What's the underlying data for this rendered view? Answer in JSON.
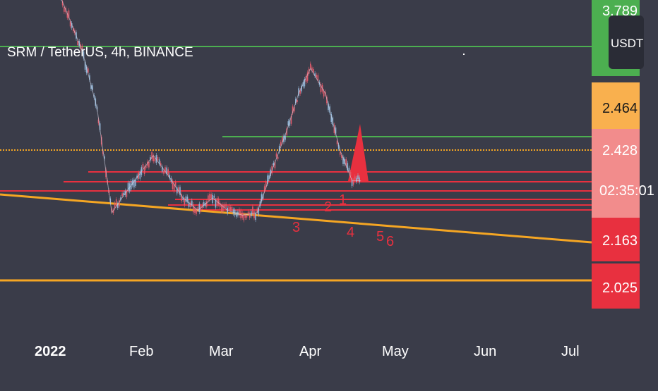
{
  "header": {
    "title": "SRM / TetherUS, 4h, BINANCE",
    "currency_button": "USDT"
  },
  "colors": {
    "background": "#3a3c49",
    "green_line": "#4caf50",
    "red_line": "#e8303f",
    "orange_line": "#f5a623",
    "candle_up": "#8fb4d6",
    "candle_down": "#e05a6a",
    "axis_text": "#ffffff"
  },
  "price_axis": {
    "labels": [
      {
        "text": "3.789",
        "color": "#4caf50",
        "text_color": "#ffffff"
      },
      {
        "text": "2.464",
        "color": "#f9b04e",
        "text_color": "#1a1a1a"
      },
      {
        "text": "2.428",
        "color": "#f28c8c",
        "text_color": "#ffffff"
      },
      {
        "text": "02:35:01",
        "color": "#f28c8c",
        "text_color": "#ffffff"
      },
      {
        "text": "2.163",
        "color": "#e8303f",
        "text_color": "#ffffff"
      },
      {
        "text": "2.025",
        "color": "#e8303f",
        "text_color": "#ffffff"
      }
    ]
  },
  "time_axis": {
    "labels": [
      "2022",
      "Feb",
      "Mar",
      "Apr",
      "May",
      "Jun",
      "Jul"
    ]
  },
  "annotations": [
    "1",
    "2",
    "3",
    "4",
    "5",
    "6"
  ],
  "chart_data": {
    "type": "candlestick",
    "title": "SRM / TetherUS, 4h, BINANCE",
    "x_ticks": [
      "2022",
      "Feb",
      "Mar",
      "Apr",
      "May",
      "Jun",
      "Jul"
    ],
    "last_price": 2.428,
    "countdown": "02:35:01",
    "horizontal_levels": [
      {
        "label": "3.789",
        "color": "green"
      },
      {
        "label": "2.464",
        "color": "orange"
      },
      {
        "label": "2.428",
        "color": "salmon"
      },
      {
        "label": "2.163",
        "color": "red"
      },
      {
        "label": "2.025",
        "color": "red"
      }
    ],
    "wave_labels": [
      "1",
      "2",
      "3",
      "4",
      "5",
      "6"
    ],
    "price_path": [
      {
        "x": "2022-01-01",
        "y": 3.3
      },
      {
        "x": "2022-01-08",
        "y": 3.1
      },
      {
        "x": "2022-01-13",
        "y": 2.95
      },
      {
        "x": "2022-01-18",
        "y": 2.72
      },
      {
        "x": "2022-01-23",
        "y": 2.3
      },
      {
        "x": "2022-01-27",
        "y": 2.37
      },
      {
        "x": "2022-02-01",
        "y": 2.45
      },
      {
        "x": "2022-02-06",
        "y": 2.53
      },
      {
        "x": "2022-02-11",
        "y": 2.45
      },
      {
        "x": "2022-02-16",
        "y": 2.36
      },
      {
        "x": "2022-02-21",
        "y": 2.31
      },
      {
        "x": "2022-02-26",
        "y": 2.36
      },
      {
        "x": "2022-03-03",
        "y": 2.31
      },
      {
        "x": "2022-03-08",
        "y": 2.29
      },
      {
        "x": "2022-03-13",
        "y": 2.3
      },
      {
        "x": "2022-03-18",
        "y": 2.47
      },
      {
        "x": "2022-03-23",
        "y": 2.63
      },
      {
        "x": "2022-03-27",
        "y": 2.78
      },
      {
        "x": "2022-03-31",
        "y": 2.88
      },
      {
        "x": "2022-04-05",
        "y": 2.78
      },
      {
        "x": "2022-04-10",
        "y": 2.55
      },
      {
        "x": "2022-04-14",
        "y": 2.43
      },
      {
        "x": "2022-04-17",
        "y": 2.428
      }
    ]
  }
}
